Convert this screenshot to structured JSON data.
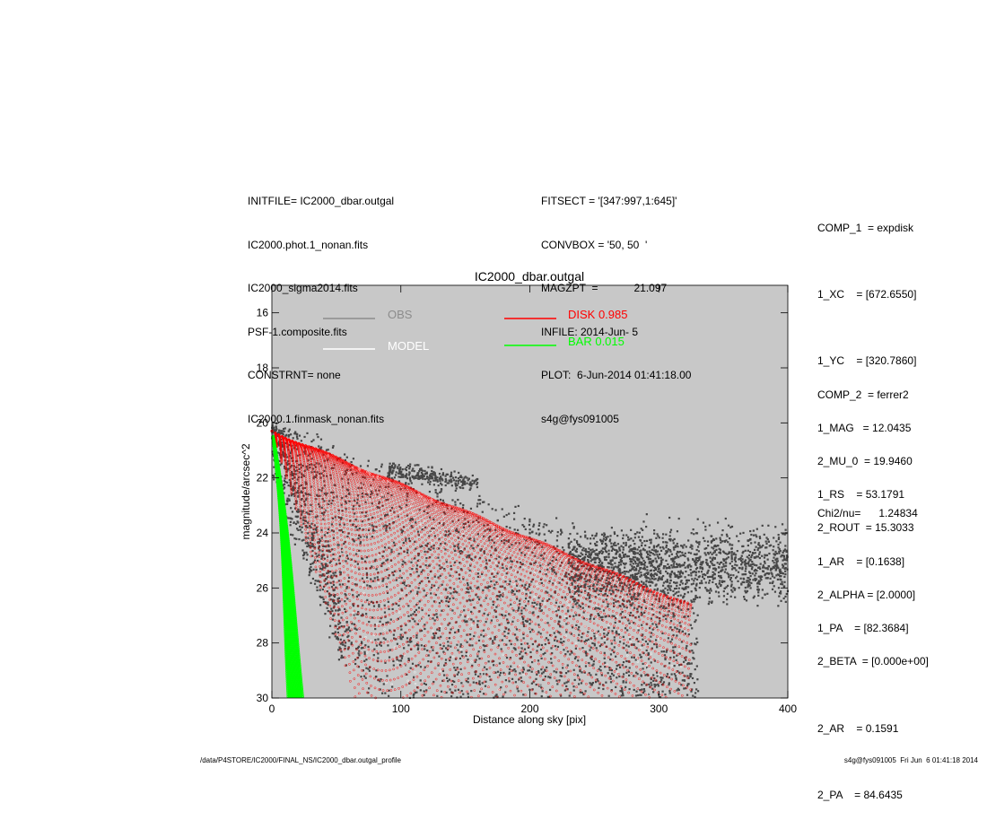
{
  "header_left": [
    "INITFILE= IC2000_dbar.outgal",
    "IC2000.phot.1_nonan.fits",
    "IC2000_sigma2014.fits",
    "PSF-1.composite.fits",
    "CONSTRNT= none",
    "IC2000.1.finmask_nonan.fits"
  ],
  "header_mid": [
    "FITSECT = '[347:997,1:645]'",
    "CONVBOX = '50, 50  '",
    "MAGZPT  =            21.097",
    "INFILE: 2014-Jun- 5",
    "PLOT:  6-Jun-2014 01:41:18.00",
    "s4g@fys091005"
  ],
  "params_comp1": [
    "COMP_1  = expdisk",
    "1_XC    = [672.6550]",
    "1_YC    = [320.7860]",
    "1_MAG   = 12.0435",
    "1_RS    = 53.1791",
    "1_AR    = [0.1638]",
    "1_PA    = [82.3684]"
  ],
  "params_comp2": [
    "COMP_2  = ferrer2",
    "2_MU_0  = 19.9460",
    "2_ROUT  = 15.3033",
    "2_ALPHA = [2.0000]",
    "2_BETA  = [0.000e+00]",
    "2_AR    = 0.1591",
    "2_PA    = 84.6435"
  ],
  "chi2": "Chi2/nu=      1.24834",
  "footer_left": "/data/P4STORE/IC2000/FINAL_NS/IC2000_dbar.outgal_profile",
  "footer_right": "s4g@fys091005  Fri Jun  6 01:41:18 2014",
  "colors": {
    "plot_bg": "#c8c8c8",
    "obs": "#464646",
    "obs_legend": "#8c8c8c",
    "model": "#ffffff",
    "disk": "#ff0000",
    "bar": "#00ff00"
  },
  "chart_data": {
    "type": "scatter",
    "title": "IC2000_dbar.outgal",
    "xlabel": "Distance along sky [pix]",
    "ylabel": "magnitude/arcsec^2",
    "xlim": [
      0,
      400
    ],
    "ylim": [
      30,
      15
    ],
    "x_ticks": [
      0,
      100,
      200,
      300,
      400
    ],
    "y_ticks": [
      16,
      18,
      20,
      22,
      24,
      26,
      28,
      30
    ],
    "legend": [
      {
        "label": "OBS",
        "color": "#8c8c8c"
      },
      {
        "label": "MODEL",
        "color": "#ffffff"
      },
      {
        "label": "DISK  0.985",
        "color": "#ff0000"
      },
      {
        "label": "BAR  0.015",
        "color": "#00ff00"
      }
    ],
    "series": [
      {
        "name": "OBS",
        "description_range": {
          "x": [
            0,
            400
          ],
          "y": [
            19.6,
            30
          ]
        }
      },
      {
        "name": "DISK",
        "upper_envelope": [
          [
            0,
            20.3
          ],
          [
            100,
            21.9
          ],
          [
            200,
            23.9
          ],
          [
            325,
            26.7
          ]
        ],
        "lower_envelope": [
          [
            0,
            20.4
          ],
          [
            80,
            30
          ]
        ]
      },
      {
        "name": "BAR",
        "upper_envelope": [
          [
            0,
            20.5
          ],
          [
            22,
            30
          ]
        ],
        "lower_envelope": [
          [
            0,
            20.7
          ],
          [
            12,
            30
          ]
        ]
      }
    ]
  }
}
